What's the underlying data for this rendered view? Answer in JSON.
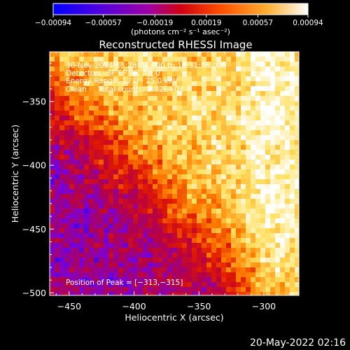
{
  "chart_data": {
    "type": "heatmap",
    "title": "Reconstructed RHESSI Image",
    "xlabel": "Heliocentric X (arcsec)",
    "ylabel": "Heliocentric Y (arcsec)",
    "xlim": [
      -465,
      -273
    ],
    "ylim": [
      -502,
      -311
    ],
    "xticks": [
      -450,
      -400,
      -350,
      -300
    ],
    "yticks": [
      -500,
      -450,
      -400,
      -350
    ],
    "xtick_labels": [
      "−450",
      "−400",
      "−350",
      "−300"
    ],
    "ytick_labels": [
      "−500",
      "−450",
      "−400",
      "−350"
    ],
    "colorbar": {
      "range": [
        -0.00094,
        0.00094
      ],
      "ticks": [
        -0.00094,
        -0.00057,
        -0.00019,
        0.00019,
        0.00057,
        0.00094
      ],
      "tick_labels": [
        "−0.00094",
        "−0.00057",
        "−0.00019",
        "0.00019",
        "0.00057",
        "0.00094"
      ],
      "unit_label": "(photons cm⁻² s⁻¹ asec⁻²)",
      "colors": [
        "#0000ff",
        "#7a00d8",
        "#b40048",
        "#e01800",
        "#ff8000",
        "#ffe060",
        "#ffffff"
      ]
    },
    "peak": {
      "x": -313,
      "y": -315
    },
    "annotations": [
      "30-Nov-2014 13:28:04.000 to 13:31:56.000",
      "Detectors: 3F 6F 9F, Att 0",
      "Energy Range: 12.0 - 25.0 keV",
      "Clean     Total counts: 2.02E+03"
    ],
    "peak_label": "Position of Peak = [−313,−315]"
  },
  "timestamp": "20-May-2022 02:16"
}
